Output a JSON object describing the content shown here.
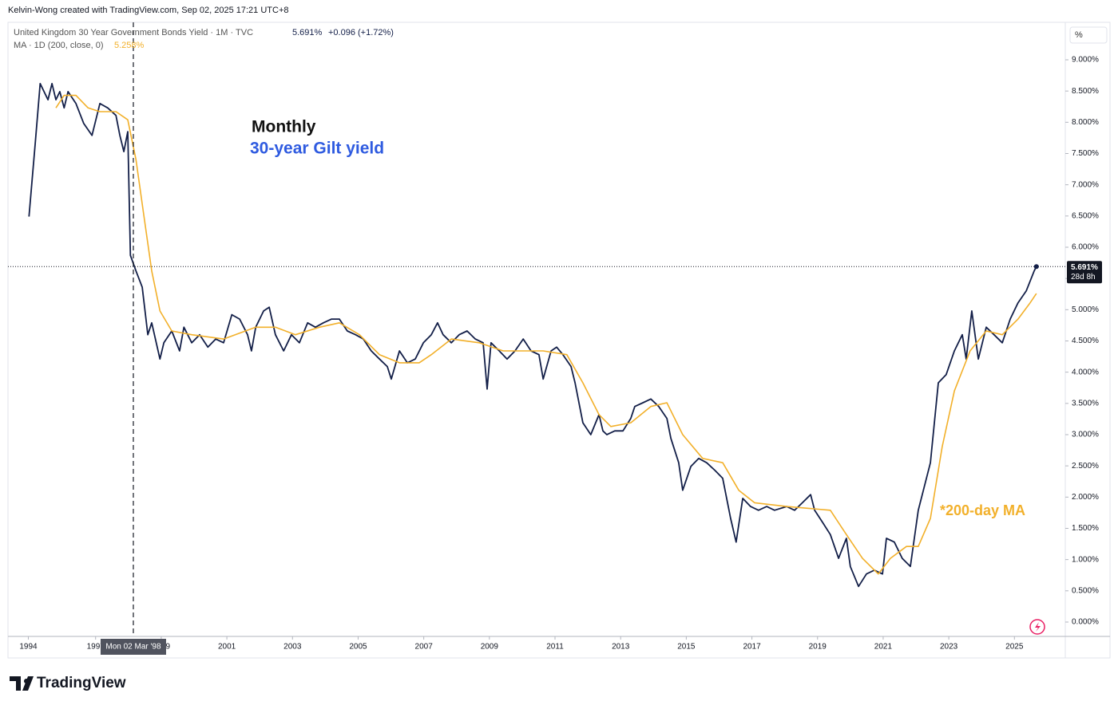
{
  "header": {
    "credit": "Kelvin-Wong created with TradingView.com, Sep 02, 2025 17:21 UTC+8"
  },
  "legend": {
    "symbol": "United Kingdom 30 Year Government Bonds Yield · 1M · TVC",
    "price": "5.691%",
    "change": "+0.096 (+1.72%)",
    "ma": "MA · 1D (200, close, 0)",
    "ma_value": "5.258%"
  },
  "price_label": {
    "countdown": "28d 8h"
  },
  "crosshair": {
    "x": 1998.15,
    "label": "Mon 02 Mar '98"
  },
  "axis_unit": "%",
  "footer": {
    "logo_text": "TradingView"
  },
  "chart_data": {
    "type": "line",
    "annotations": [
      "Monthly",
      "30-year Gilt yield",
      "*200-day MA"
    ],
    "xlim": [
      1994.33,
      2026.55
    ],
    "xticks": [
      {
        "value": 1994.95,
        "label": "1994"
      },
      1997,
      1999,
      2001,
      2003,
      2005,
      2007,
      2009,
      2011,
      2013,
      2015,
      2017,
      2019,
      2021,
      2023,
      2025
    ],
    "ylim": [
      -0.23,
      9.6
    ],
    "yticks": [
      {
        "value": 0,
        "label": "0.000%"
      },
      {
        "value": 0.5,
        "label": "0.500%"
      },
      {
        "value": 1,
        "label": "1.000%"
      },
      {
        "value": 1.5,
        "label": "1.500%"
      },
      {
        "value": 2,
        "label": "2.000%"
      },
      {
        "value": 2.5,
        "label": "2.500%"
      },
      {
        "value": 3,
        "label": "3.000%"
      },
      {
        "value": 3.5,
        "label": "3.500%"
      },
      {
        "value": 4,
        "label": "4.000%"
      },
      {
        "value": 4.5,
        "label": "4.500%"
      },
      {
        "value": 5,
        "label": "5.000%"
      },
      {
        "value": 5.5,
        "label": "5.500%"
      },
      {
        "value": 6,
        "label": "6.000%"
      },
      {
        "value": 6.5,
        "label": "6.500%"
      },
      {
        "value": 7,
        "label": "7.000%"
      },
      {
        "value": 7.5,
        "label": "7.500%"
      },
      {
        "value": 8,
        "label": "8.000%"
      },
      {
        "value": 8.5,
        "label": "8.500%"
      },
      {
        "value": 9,
        "label": "9.000%"
      }
    ],
    "series": [
      {
        "name": "United Kingdom 30 Year Government Bonds Yield",
        "color": "#131f48",
        "x": [
          1994.97,
          1995.16,
          1995.31,
          1995.55,
          1995.67,
          1995.79,
          1995.91,
          1996.04,
          1996.16,
          1996.4,
          1996.64,
          1996.89,
          1997.13,
          1997.37,
          1997.62,
          1997.74,
          1997.86,
          1997.98,
          1998.06,
          1998.23,
          1998.42,
          1998.59,
          1998.71,
          1998.96,
          1999.08,
          1999.32,
          1999.56,
          1999.69,
          1999.93,
          2000.17,
          2000.42,
          2000.66,
          2000.9,
          2001.15,
          2001.39,
          2001.63,
          2001.75,
          2001.88,
          2002.12,
          2002.29,
          2002.48,
          2002.73,
          2002.97,
          2003.21,
          2003.46,
          2003.7,
          2003.94,
          2004.19,
          2004.43,
          2004.67,
          2004.92,
          2005.16,
          2005.4,
          2005.65,
          2005.89,
          2006.01,
          2006.26,
          2006.5,
          2006.74,
          2006.99,
          2007.23,
          2007.42,
          2007.59,
          2007.84,
          2008.08,
          2008.32,
          2008.57,
          2008.81,
          2008.93,
          2009.05,
          2009.3,
          2009.54,
          2009.78,
          2010.03,
          2010.27,
          2010.51,
          2010.64,
          2010.88,
          2011.05,
          2011.24,
          2011.49,
          2011.61,
          2011.85,
          2012.09,
          2012.34,
          2012.46,
          2012.58,
          2012.82,
          2013.07,
          2013.31,
          2013.43,
          2013.68,
          2013.92,
          2014.16,
          2014.41,
          2014.53,
          2014.77,
          2014.89,
          2015.14,
          2015.38,
          2015.62,
          2015.87,
          2016.11,
          2016.35,
          2016.52,
          2016.72,
          2016.96,
          2017.2,
          2017.45,
          2017.69,
          2018.06,
          2018.3,
          2018.54,
          2018.79,
          2018.91,
          2019.15,
          2019.39,
          2019.64,
          2019.88,
          2020.0,
          2020.25,
          2020.49,
          2020.73,
          2020.98,
          2021.1,
          2021.34,
          2021.58,
          2021.83,
          2022.07,
          2022.44,
          2022.68,
          2022.92,
          2023.17,
          2023.41,
          2023.53,
          2023.7,
          2023.9,
          2024.14,
          2024.38,
          2024.63,
          2024.87,
          2025.11,
          2025.36,
          2025.6,
          2025.67
        ],
        "values": [
          6.49,
          7.66,
          8.62,
          8.36,
          8.62,
          8.36,
          8.49,
          8.23,
          8.49,
          8.3,
          7.98,
          7.79,
          8.3,
          8.23,
          8.11,
          7.79,
          7.53,
          7.85,
          5.87,
          5.62,
          5.36,
          4.6,
          4.79,
          4.21,
          4.47,
          4.66,
          4.34,
          4.72,
          4.47,
          4.6,
          4.4,
          4.53,
          4.47,
          4.92,
          4.85,
          4.6,
          4.34,
          4.72,
          4.98,
          5.04,
          4.6,
          4.34,
          4.6,
          4.47,
          4.79,
          4.72,
          4.79,
          4.85,
          4.85,
          4.66,
          4.6,
          4.53,
          4.34,
          4.21,
          4.09,
          3.89,
          4.34,
          4.15,
          4.21,
          4.47,
          4.6,
          4.79,
          4.6,
          4.47,
          4.6,
          4.66,
          4.53,
          4.47,
          3.73,
          4.47,
          4.34,
          4.21,
          4.34,
          4.53,
          4.34,
          4.28,
          3.89,
          4.34,
          4.4,
          4.28,
          4.09,
          3.83,
          3.19,
          3.0,
          3.32,
          3.06,
          3.0,
          3.06,
          3.06,
          3.26,
          3.45,
          3.51,
          3.57,
          3.45,
          3.26,
          2.94,
          2.55,
          2.11,
          2.49,
          2.62,
          2.55,
          2.43,
          2.3,
          1.66,
          1.28,
          1.98,
          1.85,
          1.79,
          1.85,
          1.79,
          1.85,
          1.79,
          1.91,
          2.04,
          1.79,
          1.6,
          1.4,
          1.02,
          1.34,
          0.89,
          0.57,
          0.77,
          0.83,
          0.77,
          1.34,
          1.28,
          1.02,
          0.89,
          1.79,
          2.55,
          3.83,
          3.96,
          4.34,
          4.6,
          4.21,
          4.98,
          4.21,
          4.72,
          4.6,
          4.47,
          4.85,
          5.11,
          5.3,
          5.62,
          5.691
        ]
      },
      {
        "name": "MA",
        "color": "#f2b02a",
        "x": [
          1995.79,
          1996.04,
          1996.4,
          1996.77,
          1997.13,
          1997.62,
          1997.98,
          1998.23,
          1998.47,
          1998.71,
          1998.96,
          1999.32,
          1999.93,
          2000.9,
          2001.88,
          2002.48,
          2003.09,
          2003.82,
          2004.43,
          2005.04,
          2005.65,
          2006.26,
          2006.86,
          2007.23,
          2007.84,
          2008.69,
          2009.42,
          2010.64,
          2011.36,
          2011.85,
          2012.34,
          2012.7,
          2013.31,
          2013.92,
          2014.41,
          2014.89,
          2015.5,
          2016.11,
          2016.6,
          2017.08,
          2018.06,
          2019.39,
          2019.88,
          2020.37,
          2020.85,
          2021.22,
          2021.71,
          2022.07,
          2022.44,
          2022.8,
          2023.17,
          2023.65,
          2024.14,
          2024.63,
          2025.11,
          2025.48,
          2025.67
        ],
        "values": [
          8.23,
          8.43,
          8.43,
          8.23,
          8.17,
          8.17,
          8.04,
          7.4,
          6.51,
          5.62,
          4.98,
          4.66,
          4.6,
          4.53,
          4.72,
          4.72,
          4.6,
          4.72,
          4.79,
          4.6,
          4.28,
          4.15,
          4.15,
          4.28,
          4.53,
          4.47,
          4.34,
          4.34,
          4.28,
          3.83,
          3.32,
          3.13,
          3.19,
          3.45,
          3.51,
          3.0,
          2.62,
          2.55,
          2.11,
          1.91,
          1.85,
          1.79,
          1.4,
          1.02,
          0.77,
          1.02,
          1.21,
          1.21,
          1.66,
          2.81,
          3.7,
          4.34,
          4.66,
          4.6,
          4.85,
          5.11,
          5.258
        ]
      }
    ]
  }
}
